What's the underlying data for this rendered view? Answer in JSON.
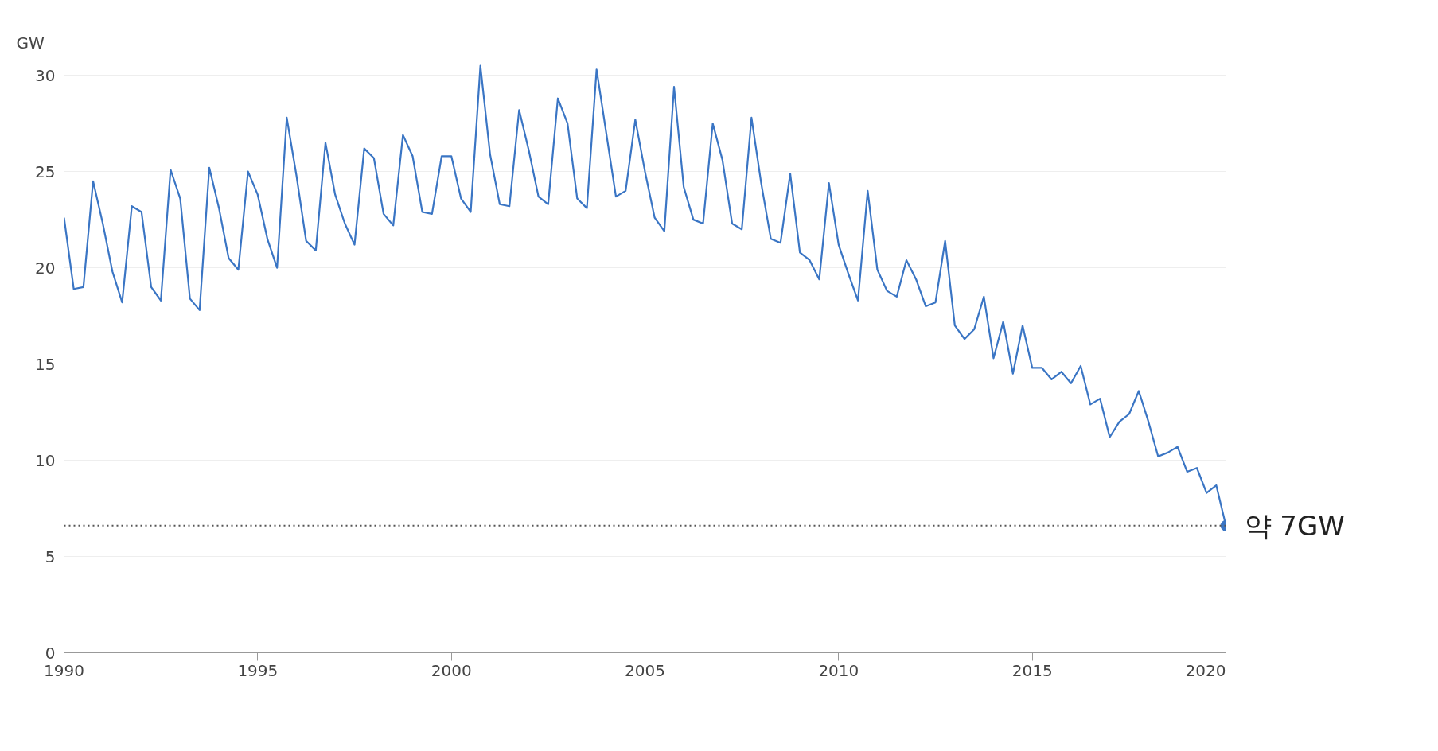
{
  "chart_data": {
    "type": "line",
    "ylabel": "GW",
    "x": [
      1990,
      1990.25,
      1990.5,
      1990.75,
      1991,
      1991.25,
      1991.5,
      1991.75,
      1992,
      1992.25,
      1992.5,
      1992.75,
      1993,
      1993.25,
      1993.5,
      1993.75,
      1994,
      1994.25,
      1994.5,
      1994.75,
      1995,
      1995.25,
      1995.5,
      1995.75,
      1996,
      1996.25,
      1996.5,
      1996.75,
      1997,
      1997.25,
      1997.5,
      1997.75,
      1998,
      1998.25,
      1998.5,
      1998.75,
      1999,
      1999.25,
      1999.5,
      1999.75,
      2000,
      2000.25,
      2000.5,
      2000.75,
      2001,
      2001.25,
      2001.5,
      2001.75,
      2002,
      2002.25,
      2002.5,
      2002.75,
      2003,
      2003.25,
      2003.5,
      2003.75,
      2004,
      2004.25,
      2004.5,
      2004.75,
      2005,
      2005.25,
      2005.5,
      2005.75,
      2006,
      2006.25,
      2006.5,
      2006.75,
      2007,
      2007.25,
      2007.5,
      2007.75,
      2008,
      2008.25,
      2008.5,
      2008.75,
      2009,
      2009.25,
      2009.5,
      2009.75,
      2010,
      2010.25,
      2010.5,
      2010.75,
      2011,
      2011.25,
      2011.5,
      2011.75,
      2012,
      2012.25,
      2012.5,
      2012.75,
      2013,
      2013.25,
      2013.5,
      2013.75,
      2014,
      2014.25,
      2014.5,
      2014.75,
      2015,
      2015.25,
      2015.5,
      2015.75,
      2016,
      2016.25,
      2016.5,
      2016.75,
      2017,
      2017.25,
      2017.5,
      2017.75,
      2018,
      2018.25,
      2018.5,
      2018.75,
      2019,
      2019.25,
      2019.5,
      2019.75,
      2020
    ],
    "series": [
      {
        "color": "#3a75c4",
        "values": [
          22.6,
          18.9,
          19.0,
          24.5,
          22.3,
          19.8,
          18.2,
          23.2,
          22.9,
          19.0,
          18.3,
          25.1,
          23.6,
          18.4,
          17.8,
          25.2,
          23.1,
          20.5,
          19.9,
          25.0,
          23.8,
          21.5,
          20.0,
          27.8,
          24.8,
          21.4,
          20.9,
          26.5,
          23.8,
          22.3,
          21.2,
          26.2,
          25.7,
          22.8,
          22.2,
          26.9,
          25.8,
          22.9,
          22.8,
          25.8,
          25.8,
          23.6,
          22.9,
          30.5,
          25.9,
          23.3,
          23.2,
          28.2,
          26.1,
          23.7,
          23.3,
          28.8,
          27.5,
          23.6,
          23.1,
          30.3,
          27.0,
          23.7,
          24.0,
          27.7,
          25.0,
          22.6,
          21.9,
          29.4,
          24.2,
          22.5,
          22.3,
          27.5,
          25.6,
          22.3,
          22.0,
          27.8,
          24.4,
          21.5,
          21.3,
          24.9,
          20.8,
          20.4,
          19.4,
          24.4,
          21.2,
          19.7,
          18.3,
          24.0,
          19.9,
          18.8,
          18.5,
          20.4,
          19.4,
          18.0,
          18.2,
          21.4,
          17.0,
          16.3,
          16.8,
          18.5,
          15.3,
          17.2,
          14.5,
          17.0,
          14.8,
          14.8,
          14.2,
          14.6,
          14.0,
          14.9,
          12.9,
          13.2,
          11.2,
          12.0,
          12.4,
          13.6,
          12.0,
          10.2,
          10.4,
          10.7,
          9.4,
          9.6,
          8.3,
          8.7,
          6.6
        ]
      }
    ],
    "xlim": [
      1990,
      2020
    ],
    "xticks": [
      1990,
      1995,
      2000,
      2005,
      2010,
      2015,
      2020
    ],
    "ylim": [
      0,
      31
    ],
    "yticks": [
      0,
      5,
      10,
      15,
      20,
      25,
      30
    ],
    "grid": "y",
    "marker": "none",
    "line_style": "solid",
    "ref_lines": [
      {
        "axis": "y",
        "value": 6.6,
        "color": "#555555",
        "line_style": "dotted"
      }
    ],
    "annotations": [
      {
        "text": "약 7GW",
        "x": 2020,
        "y": 6.6
      }
    ]
  }
}
